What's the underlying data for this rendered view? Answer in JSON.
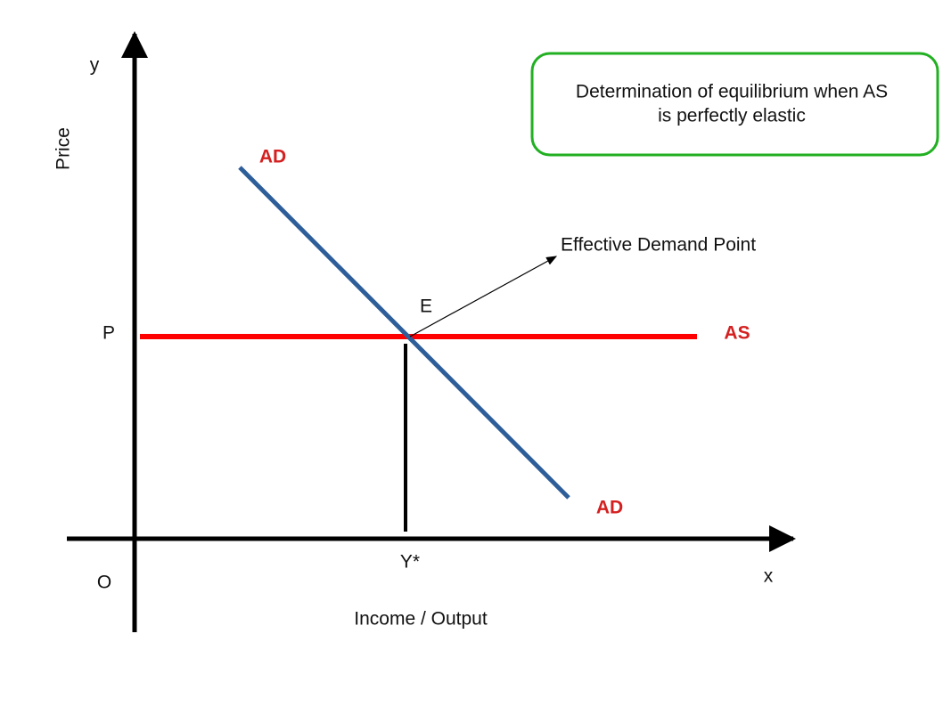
{
  "axes": {
    "y_label": "y",
    "price_label": "Price",
    "x_label": "x",
    "origin_label": "O",
    "income_label": "Income / Output",
    "price_level": "P",
    "equilibrium_output": "Y*"
  },
  "curves": {
    "ad_top": "AD",
    "ad_bottom": "AD",
    "as": "AS"
  },
  "equilibrium": {
    "label": "E",
    "annotation": "Effective Demand Point"
  },
  "title_box": {
    "lines": [
      "Determination of equilibrium when AS",
      "is perfectly elastic"
    ]
  }
}
